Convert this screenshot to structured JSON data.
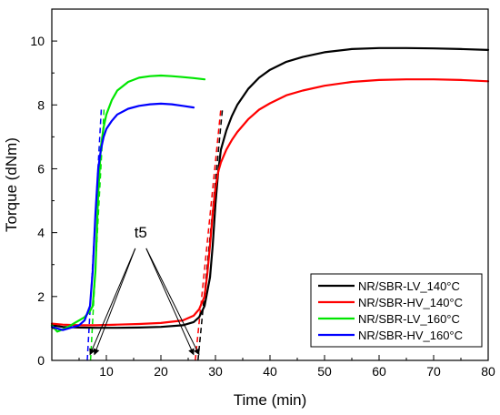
{
  "chart_data": {
    "type": "line",
    "title": "",
    "xlabel": "Time (min)",
    "ylabel": "Torque (dNm)",
    "xlim": [
      0,
      80
    ],
    "ylim": [
      0,
      11
    ],
    "xticks": [
      10,
      20,
      30,
      40,
      50,
      60,
      70,
      80
    ],
    "yticks": [
      0,
      2,
      4,
      6,
      8,
      10
    ],
    "grid": false,
    "legend_position": "bottom-right",
    "series": [
      {
        "name": "NR/SBR-LV_140°C",
        "color": "#000000",
        "x": [
          0,
          2,
          5,
          8,
          12,
          16,
          20,
          24,
          26,
          27,
          28,
          29,
          29.5,
          30,
          30.5,
          31,
          32,
          33,
          34,
          36,
          38,
          40,
          43,
          46,
          50,
          55,
          60,
          65,
          70,
          75,
          80
        ],
        "y": [
          1.1,
          1.05,
          1.03,
          1.02,
          1.02,
          1.03,
          1.05,
          1.1,
          1.2,
          1.35,
          1.7,
          2.6,
          3.6,
          4.9,
          5.9,
          6.6,
          7.2,
          7.65,
          8.0,
          8.5,
          8.85,
          9.1,
          9.35,
          9.5,
          9.65,
          9.75,
          9.78,
          9.78,
          9.77,
          9.75,
          9.72
        ]
      },
      {
        "name": "NR/SBR-HV_140°C",
        "color": "#ff0000",
        "x": [
          0,
          2,
          5,
          8,
          12,
          16,
          20,
          24,
          26,
          27,
          28,
          28.5,
          29,
          29.5,
          30,
          30.5,
          31,
          32,
          33,
          34,
          36,
          38,
          40,
          43,
          46,
          50,
          55,
          60,
          65,
          70,
          75,
          80
        ],
        "y": [
          1.15,
          1.12,
          1.1,
          1.1,
          1.12,
          1.14,
          1.17,
          1.25,
          1.4,
          1.6,
          2.0,
          2.7,
          3.6,
          4.6,
          5.4,
          5.9,
          6.2,
          6.6,
          6.9,
          7.15,
          7.55,
          7.85,
          8.05,
          8.3,
          8.45,
          8.6,
          8.72,
          8.78,
          8.8,
          8.8,
          8.78,
          8.74
        ]
      },
      {
        "name": "NR/SBR-LV_160°C",
        "color": "#00e600",
        "x": [
          0,
          1,
          2,
          3,
          4,
          5,
          6,
          6.5,
          7,
          7.5,
          8,
          8.5,
          9,
          9.5,
          10,
          11,
          12,
          14,
          16,
          18,
          20,
          22,
          24,
          26,
          28
        ],
        "y": [
          1.1,
          0.9,
          0.97,
          1.05,
          1.15,
          1.25,
          1.35,
          1.45,
          1.55,
          1.7,
          2.8,
          5.2,
          6.7,
          7.3,
          7.7,
          8.15,
          8.45,
          8.72,
          8.85,
          8.9,
          8.92,
          8.9,
          8.87,
          8.84,
          8.8
        ]
      },
      {
        "name": "NR/SBR-HV_160°C",
        "color": "#0000ff",
        "x": [
          0,
          1,
          2,
          3,
          4,
          5,
          6,
          7,
          7.5,
          8,
          8.5,
          9,
          9.5,
          10,
          11,
          12,
          14,
          16,
          18,
          20,
          22,
          24,
          26
        ],
        "y": [
          1.05,
          1.0,
          0.95,
          1.0,
          1.05,
          1.1,
          1.25,
          1.7,
          2.8,
          4.6,
          6.0,
          6.6,
          7.0,
          7.25,
          7.5,
          7.7,
          7.88,
          7.97,
          8.02,
          8.04,
          8.02,
          7.97,
          7.92
        ]
      }
    ],
    "tangent_lines": [
      {
        "color": "#0000ff",
        "x": [
          6.5,
          9.1
        ],
        "y": [
          0,
          7.95
        ]
      },
      {
        "color": "#00e600",
        "x": [
          7.1,
          9.6
        ],
        "y": [
          0,
          7.95
        ]
      },
      {
        "color": "#ff0000",
        "x": [
          26.3,
          31.0
        ],
        "y": [
          0,
          7.9
        ]
      },
      {
        "color": "#000000",
        "x": [
          26.8,
          31.3
        ],
        "y": [
          0,
          7.9
        ]
      }
    ],
    "annotation": {
      "text": "t5",
      "anchor": {
        "x": 16.3,
        "y": 3.85
      },
      "targets": [
        {
          "x": 7.0,
          "y": 0.18
        },
        {
          "x": 7.8,
          "y": 0.18
        },
        {
          "x": 26.0,
          "y": 0.18
        },
        {
          "x": 27.0,
          "y": 0.18
        }
      ]
    }
  }
}
